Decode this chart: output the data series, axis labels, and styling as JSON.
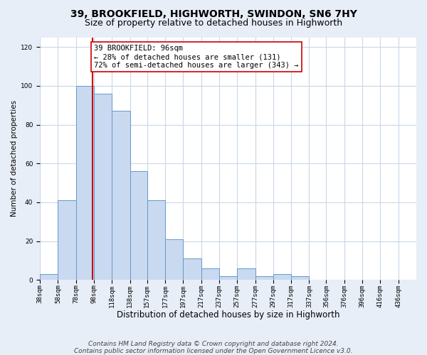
{
  "title": "39, BROOKFIELD, HIGHWORTH, SWINDON, SN6 7HY",
  "subtitle": "Size of property relative to detached houses in Highworth",
  "xlabel": "Distribution of detached houses by size in Highworth",
  "ylabel": "Number of detached properties",
  "bar_left_edges": [
    38,
    58,
    78,
    98,
    118,
    138,
    157,
    177,
    197,
    217,
    237,
    257,
    277,
    297,
    317,
    337,
    356,
    376,
    396,
    416
  ],
  "bar_widths": [
    20,
    20,
    20,
    20,
    20,
    19,
    20,
    20,
    20,
    20,
    20,
    20,
    20,
    20,
    20,
    19,
    20,
    20,
    20,
    20
  ],
  "bar_heights": [
    3,
    41,
    100,
    96,
    87,
    56,
    41,
    21,
    11,
    6,
    2,
    6,
    2,
    3,
    2,
    0,
    0,
    0,
    0,
    0
  ],
  "tick_labels": [
    "38sqm",
    "58sqm",
    "78sqm",
    "98sqm",
    "118sqm",
    "138sqm",
    "157sqm",
    "177sqm",
    "197sqm",
    "217sqm",
    "237sqm",
    "257sqm",
    "277sqm",
    "297sqm",
    "317sqm",
    "337sqm",
    "356sqm",
    "376sqm",
    "396sqm",
    "416sqm",
    "436sqm"
  ],
  "tick_positions": [
    38,
    58,
    78,
    98,
    118,
    138,
    157,
    177,
    197,
    217,
    237,
    257,
    277,
    297,
    317,
    337,
    356,
    376,
    396,
    416,
    436
  ],
  "bar_color": "#c9d9f0",
  "bar_edge_color": "#6699cc",
  "property_line_x": 96,
  "property_line_color": "#cc0000",
  "annotation_line1": "39 BROOKFIELD: 96sqm",
  "annotation_line2": "← 28% of detached houses are smaller (131)",
  "annotation_line3": "72% of semi-detached houses are larger (343) →",
  "annotation_box_color": "#ffffff",
  "annotation_box_edge": "#cc0000",
  "ylim": [
    0,
    125
  ],
  "yticks": [
    0,
    20,
    40,
    60,
    80,
    100,
    120
  ],
  "footer_line1": "Contains HM Land Registry data © Crown copyright and database right 2024.",
  "footer_line2": "Contains public sector information licensed under the Open Government Licence v3.0.",
  "background_color": "#e8eef8",
  "plot_background": "#ffffff",
  "grid_color": "#c8d8e8",
  "title_fontsize": 10,
  "subtitle_fontsize": 9,
  "xlabel_fontsize": 8.5,
  "ylabel_fontsize": 7.5,
  "tick_fontsize": 6.5,
  "annotation_fontsize": 7.5,
  "footer_fontsize": 6.5
}
